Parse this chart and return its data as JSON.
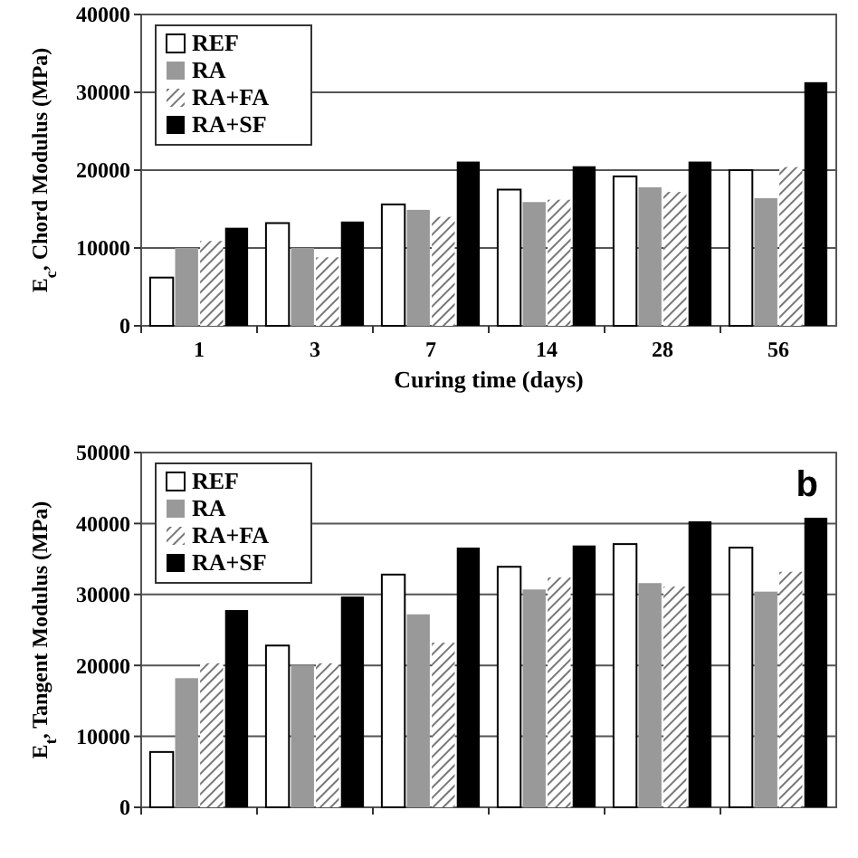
{
  "chart_data": [
    {
      "type": "bar",
      "xlabel": "Curing time (days)",
      "ylabel": "E$_{c}$, Chord Modulus (MPa)",
      "categories": [
        "1",
        "3",
        "7",
        "14",
        "28",
        "56"
      ],
      "ylim": [
        0,
        40000
      ],
      "yticks": [
        0,
        10000,
        20000,
        30000,
        40000
      ],
      "grid": "y",
      "legend": "top left",
      "series": [
        {
          "name": "REF",
          "color": "#ffffff",
          "values": [
            6200,
            13200,
            15600,
            17500,
            19200,
            20000
          ]
        },
        {
          "name": "RA",
          "color": "#999999",
          "values": [
            10000,
            10000,
            14900,
            15900,
            17800,
            16400
          ]
        },
        {
          "name": "RA+FA",
          "color": "#777777",
          "values": [
            10900,
            8800,
            14000,
            16200,
            17200,
            20400
          ]
        },
        {
          "name": "RA+SF",
          "color": "#000000",
          "values": [
            12600,
            13400,
            21100,
            20500,
            21100,
            31300
          ]
        }
      ]
    },
    {
      "type": "bar",
      "ylabel": "E$_{t}$, Tangent Modulus (MPa)",
      "categories": [
        "1",
        "3",
        "7",
        "14",
        "28",
        "56"
      ],
      "tick_labels": "y",
      "ylim": [
        0,
        50000
      ],
      "yticks": [
        0,
        10000,
        20000,
        30000,
        40000,
        50000
      ],
      "grid": "y",
      "legend": "top left",
      "annotations": [
        "b"
      ],
      "series": [
        {
          "name": "REF",
          "color": "#ffffff",
          "values": [
            7800,
            22800,
            32800,
            33900,
            37100,
            36600
          ]
        },
        {
          "name": "RA",
          "color": "#999999",
          "values": [
            18200,
            20000,
            27200,
            30700,
            31600,
            30400
          ]
        },
        {
          "name": "RA+FA",
          "color": "#777777",
          "values": [
            20300,
            20300,
            23200,
            32400,
            31100,
            33200
          ]
        },
        {
          "name": "RA+SF",
          "color": "#000000",
          "values": [
            27800,
            29700,
            36600,
            36900,
            40300,
            40800
          ]
        }
      ]
    }
  ]
}
